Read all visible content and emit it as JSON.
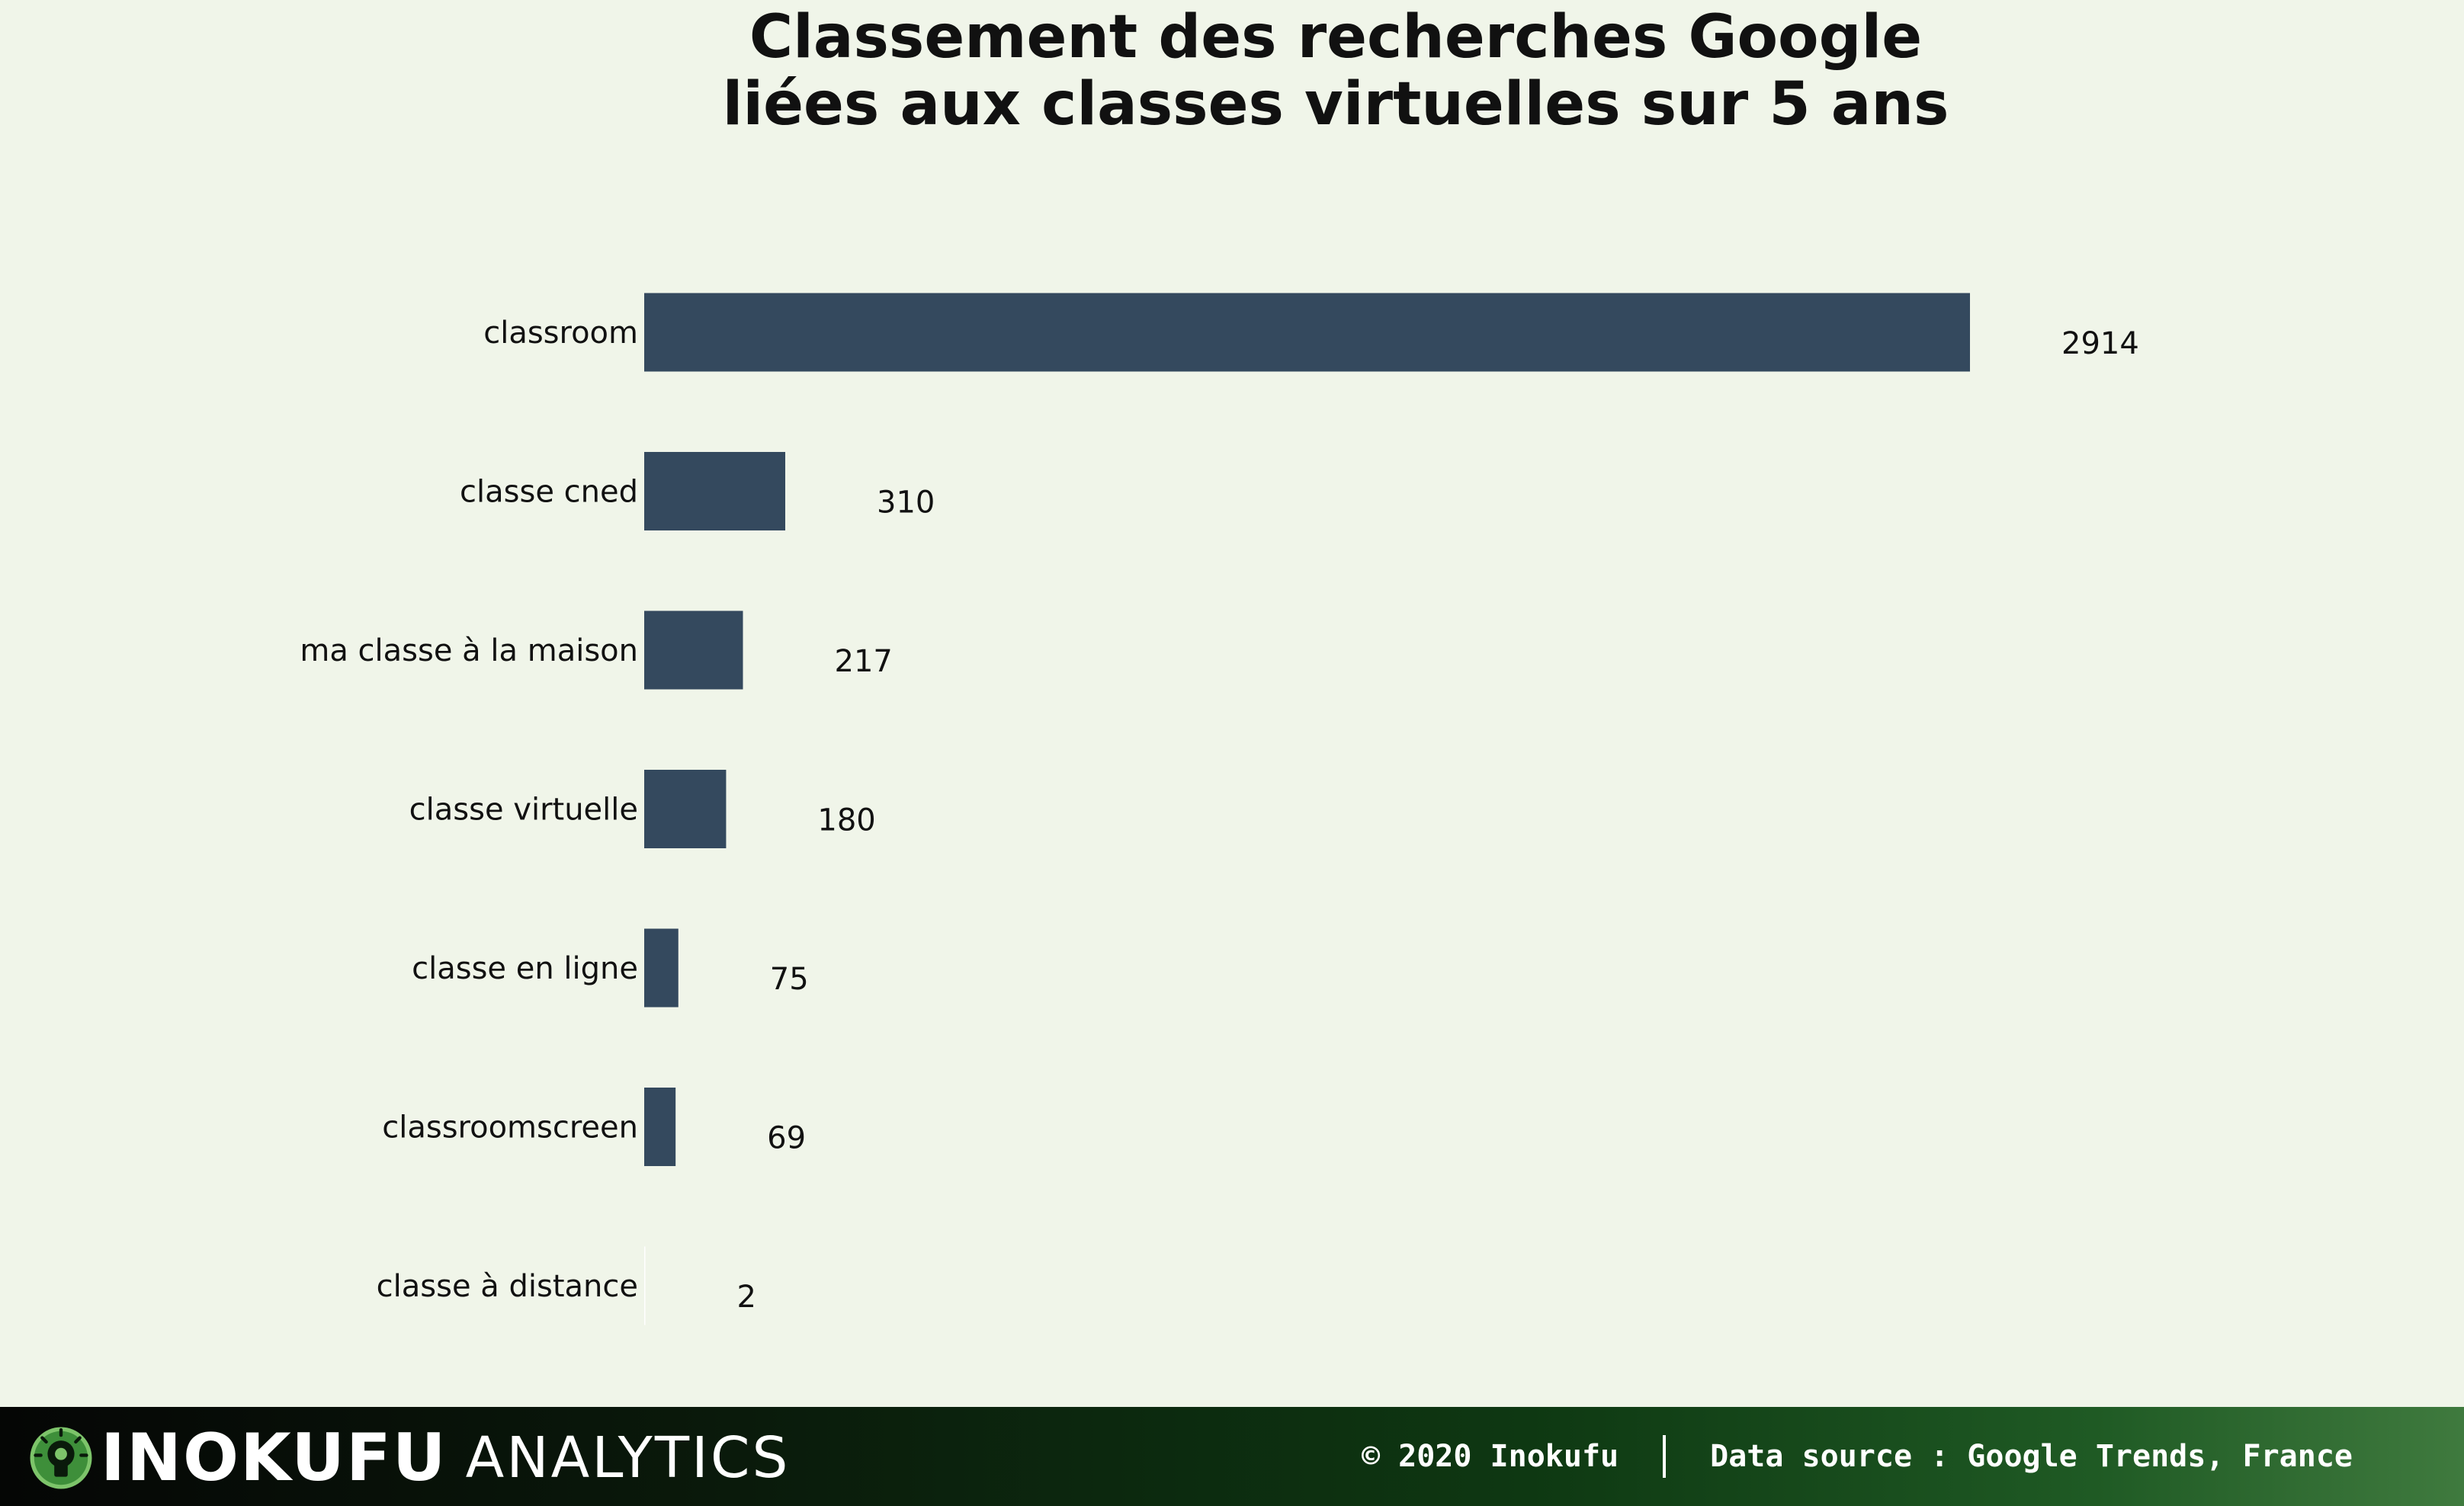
{
  "chart_data": {
    "type": "bar",
    "orientation": "horizontal",
    "title_lines": [
      "Classement des recherches Google",
      "liées aux classes virtuelles sur 5 ans"
    ],
    "categories": [
      "classroom",
      "classe cned",
      "ma classe à la maison",
      "classe virtuelle",
      "classe en ligne",
      "classroomscreen",
      "classe à distance"
    ],
    "values": [
      2914,
      310,
      217,
      180,
      75,
      69,
      2
    ],
    "value_labels": [
      "2914",
      "310",
      "217",
      "180",
      "75",
      "69",
      "2"
    ],
    "xlim": [
      0,
      2914
    ],
    "grid": false,
    "legend": "none",
    "bar_color": "#34495e"
  },
  "footer": {
    "brand_main": "INOKUFU",
    "brand_sub": "ANALYTICS",
    "copyright": "© 2020 Inokufu",
    "source": "Data source : Google Trends, France"
  }
}
